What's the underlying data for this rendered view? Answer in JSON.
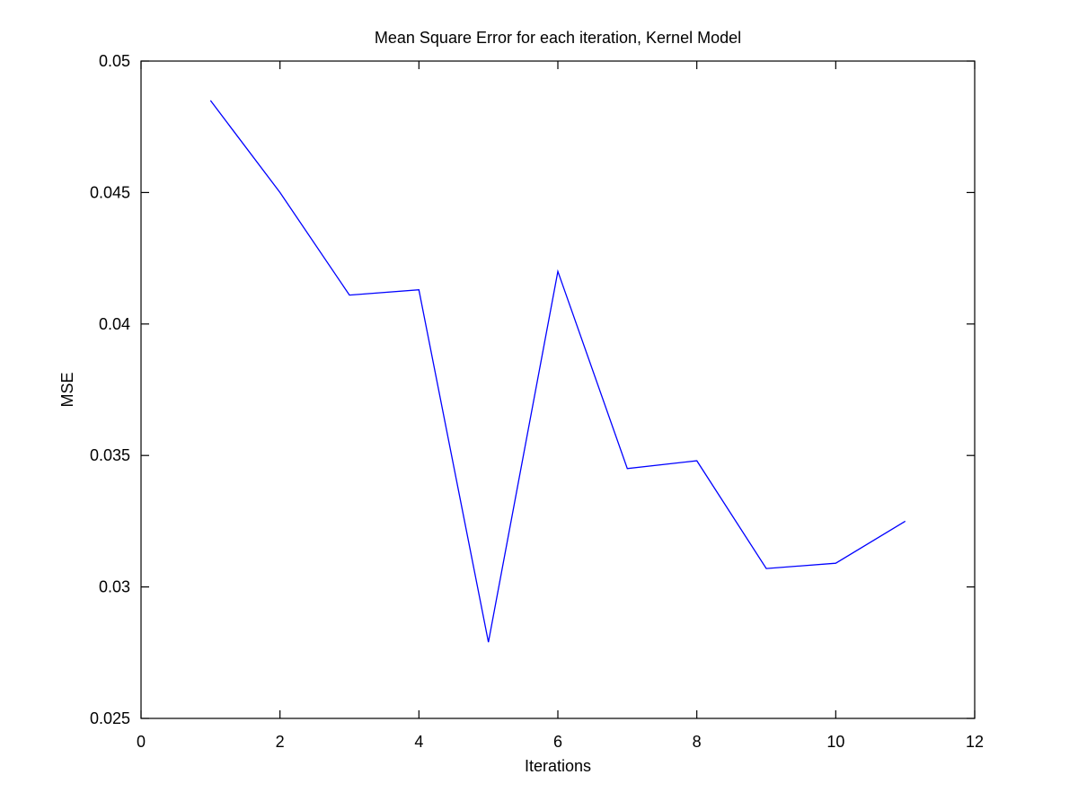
{
  "chart_data": {
    "type": "line",
    "title": "Mean Square Error for each iteration, Kernel Model",
    "xlabel": "Iterations",
    "ylabel": "MSE",
    "xlim": [
      0,
      12
    ],
    "ylim": [
      0.025,
      0.05
    ],
    "x_ticks": [
      0,
      2,
      4,
      6,
      8,
      10,
      12
    ],
    "x_tick_labels": [
      "0",
      "2",
      "4",
      "6",
      "8",
      "10",
      "12"
    ],
    "y_ticks": [
      0.025,
      0.03,
      0.035,
      0.04,
      0.045,
      0.05
    ],
    "y_tick_labels": [
      "0.025",
      "0.03",
      "0.035",
      "0.04",
      "0.045",
      "0.05"
    ],
    "grid": false,
    "legend": "none",
    "series": [
      {
        "color": "#0000ff",
        "x": [
          1,
          2,
          3,
          4,
          5,
          6,
          7,
          8,
          9,
          10,
          11
        ],
        "y": [
          0.0485,
          0.045,
          0.0411,
          0.0413,
          0.0279,
          0.042,
          0.0345,
          0.0348,
          0.0307,
          0.0309,
          0.0325
        ]
      }
    ]
  }
}
